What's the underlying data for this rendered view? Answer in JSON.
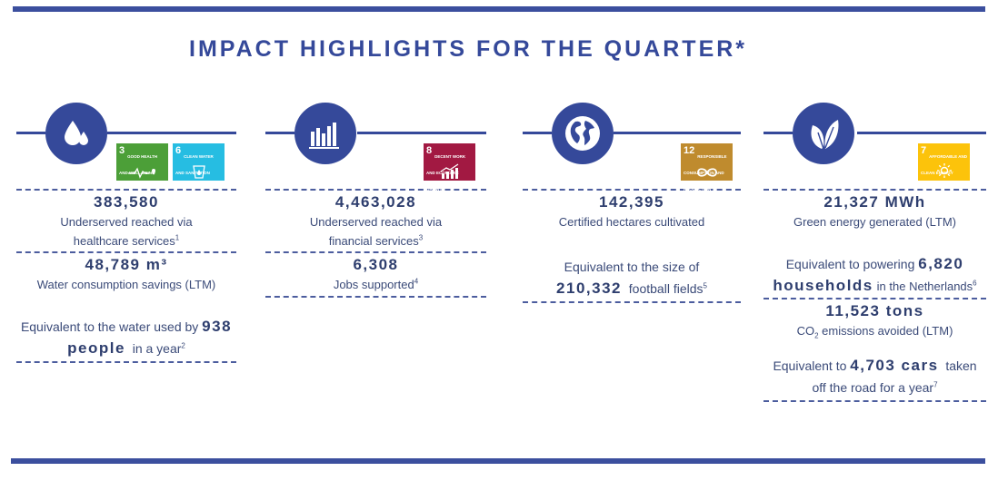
{
  "title": "IMPACT HIGHLIGHTS FOR THE QUARTER*",
  "colors": {
    "brand_blue": "#35499a",
    "sdg3": "#4c9f38",
    "sdg6": "#26bde2",
    "sdg8": "#a21942",
    "sdg12": "#bf8b2e",
    "sdg7": "#fcc30b"
  },
  "columns": [
    {
      "icon": "water-drop-icon",
      "sdgs": [
        {
          "number": "3",
          "name": "GOOD HEALTH AND WELL-BEING",
          "icon": "heartbeat-icon"
        },
        {
          "number": "6",
          "name": "CLEAN WATER AND SANITATION",
          "icon": "water-glass-icon"
        }
      ],
      "stat1_value": "383,580",
      "stat1_desc_line1": "Underserved reached via",
      "stat1_desc_line2": "healthcare services",
      "stat1_sup": "1",
      "stat2_value": "48,789 m³",
      "stat2_desc": "Water consumption savings (LTM)",
      "eq_prefix": "Equivalent to the water used by",
      "eq_value1": "938",
      "eq_value2": "people",
      "eq_suffix": "in a year",
      "eq_sup": "2"
    },
    {
      "icon": "bar-chart-icon",
      "sdgs": [
        {
          "number": "8",
          "name": "DECENT WORK AND ECONOMIC GROWTH",
          "icon": "growth-chart-icon"
        }
      ],
      "stat1_value": "4,463,028",
      "stat1_desc_line1": "Underserved reached via",
      "stat1_desc_line2": "financial services",
      "stat1_sup": "3",
      "stat2_value": "6,308",
      "stat2_desc": "Jobs supported",
      "stat2_sup": "4"
    },
    {
      "icon": "globe-icon",
      "sdgs": [
        {
          "number": "12",
          "name": "RESPONSIBLE CONSUMPTION AND PRODUCTION",
          "icon": "infinity-icon"
        }
      ],
      "stat1_value": "142,395",
      "stat1_desc": "Certified hectares cultivated",
      "eq_prefix": "Equivalent to the size of",
      "eq_value": "210,332",
      "eq_suffix": "football fields",
      "eq_sup": "5"
    },
    {
      "icon": "leaves-icon",
      "sdgs": [
        {
          "number": "7",
          "name": "AFFORDABLE AND CLEAN ENERGY",
          "icon": "sun-icon"
        }
      ],
      "stat1_value": "21,327 MWh",
      "stat1_desc": "Green energy generated (LTM)",
      "eq1_prefix": "Equivalent to powering",
      "eq1_value1": "6,820",
      "eq1_value2": "households",
      "eq1_suffix": "in the Netherlands",
      "eq1_sup": "6",
      "stat2_value": "11,523 tons",
      "stat2_desc_pre": "CO",
      "stat2_desc_sub": "2",
      "stat2_desc_post": "emissions avoided (LTM)",
      "eq2_prefix": "Equivalent to",
      "eq2_value": "4,703 cars",
      "eq2_suffix": "taken",
      "eq2_line2": "off the road for a year",
      "eq2_sup": "7"
    }
  ]
}
